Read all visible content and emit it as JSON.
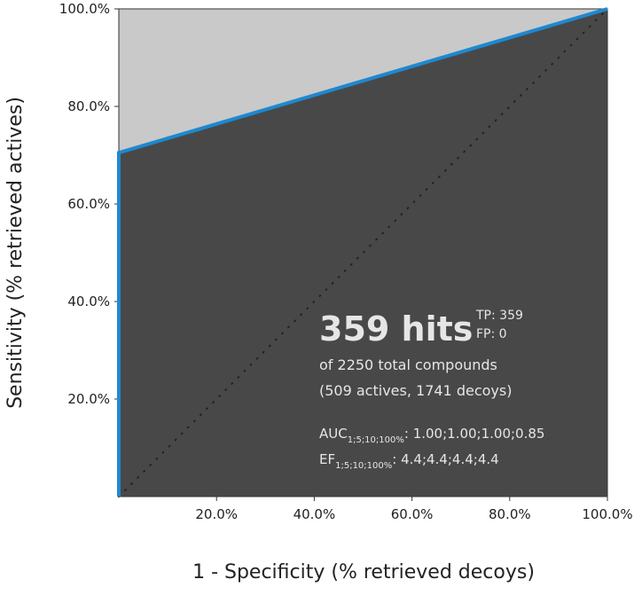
{
  "chart_data": {
    "type": "line",
    "y_label": "Sensitivity (% retrieved actives)",
    "x_label": "1 - Specificity (% retrieved decoys)",
    "xlim": [
      0,
      100
    ],
    "ylim": [
      0,
      100
    ],
    "xticks": [
      {
        "value": 20,
        "label": "20.0%"
      },
      {
        "value": 40,
        "label": "40.0%"
      },
      {
        "value": 60,
        "label": "60.0%"
      },
      {
        "value": 80,
        "label": "80.0%"
      },
      {
        "value": 100,
        "label": "100.0%"
      }
    ],
    "yticks": [
      {
        "value": 20,
        "label": "20.0%"
      },
      {
        "value": 40,
        "label": "40.0%"
      },
      {
        "value": 60,
        "label": "60.0%"
      },
      {
        "value": 80,
        "label": "80.0%"
      },
      {
        "value": 100,
        "label": "100.0%"
      }
    ],
    "series": [
      {
        "color": "#1e88d0",
        "x": [
          0,
          0,
          100
        ],
        "values": [
          0,
          70.5,
          100
        ]
      }
    ],
    "annotations": {
      "hits": "359 hits",
      "tp": "TP: 359",
      "fp": "FP: 0",
      "total": "of 2250 total compounds",
      "split": "(509 actives, 1741 decoys)",
      "auc_label": "AUC",
      "auc_sub": "1;5;10;100%",
      "auc_values": ": 1.00;1.00;1.00;0.85",
      "ef_label": "EF",
      "ef_sub": "1;5;10;100%",
      "ef_values": ": 4.4;4.4;4.4;4.4"
    }
  }
}
